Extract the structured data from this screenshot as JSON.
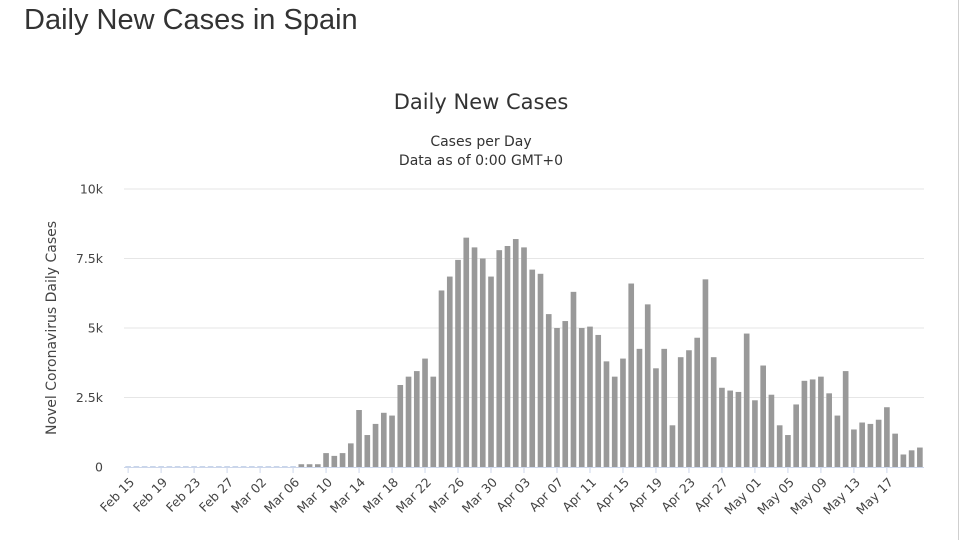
{
  "page": {
    "heading": "Daily New Cases in Spain"
  },
  "chart_data": {
    "type": "bar",
    "title": "Daily New Cases",
    "subtitle_lines": [
      "Cases per Day",
      "Data as of 0:00 GMT+0"
    ],
    "xlabel": "",
    "ylabel": "Novel Coronavirus Daily Cases",
    "ylim": [
      0,
      10000
    ],
    "y_ticks": [
      {
        "value": 0,
        "label": "0"
      },
      {
        "value": 2500,
        "label": "2.5k"
      },
      {
        "value": 5000,
        "label": "5k"
      },
      {
        "value": 7500,
        "label": "7.5k"
      },
      {
        "value": 10000,
        "label": "10k"
      }
    ],
    "x_tick_labels": [
      "Feb 15",
      "Feb 19",
      "Feb 23",
      "Feb 27",
      "Mar 02",
      "Mar 06",
      "Mar 10",
      "Mar 14",
      "Mar 18",
      "Mar 22",
      "Mar 26",
      "Mar 30",
      "Apr 03",
      "Apr 07",
      "Apr 11",
      "Apr 15",
      "Apr 19",
      "Apr 23",
      "Apr 27",
      "May 01",
      "May 05",
      "May 09",
      "May 13",
      "May 17"
    ],
    "first_date": "Feb 15",
    "grid": true,
    "legend": "none",
    "colors": {
      "bar": "#999999",
      "grid": "#e6e6e6",
      "baseline": "#ccd6eb"
    },
    "values": [
      0,
      0,
      0,
      0,
      0,
      0,
      0,
      0,
      0,
      0,
      0,
      0,
      0,
      0,
      0,
      0,
      0,
      0,
      0,
      0,
      0,
      100,
      100,
      100,
      500,
      400,
      500,
      850,
      2050,
      1150,
      1550,
      1950,
      1850,
      2950,
      3250,
      3450,
      3900,
      3250,
      6350,
      6850,
      7450,
      8250,
      7900,
      7500,
      6850,
      7800,
      7950,
      8200,
      7900,
      7100,
      6950,
      5500,
      5000,
      5250,
      6300,
      5000,
      5050,
      4750,
      3800,
      3250,
      3900,
      6600,
      4250,
      5850,
      3550,
      4250,
      1500,
      3950,
      4200,
      4650,
      6750,
      3950,
      2850,
      2750,
      2700,
      4800,
      2400,
      3650,
      2600,
      1500,
      1150,
      2250,
      3100,
      3150,
      3250,
      2650,
      1850,
      3450,
      1350,
      1600,
      1550,
      1700,
      2150,
      1200,
      450,
      600,
      700
    ]
  }
}
